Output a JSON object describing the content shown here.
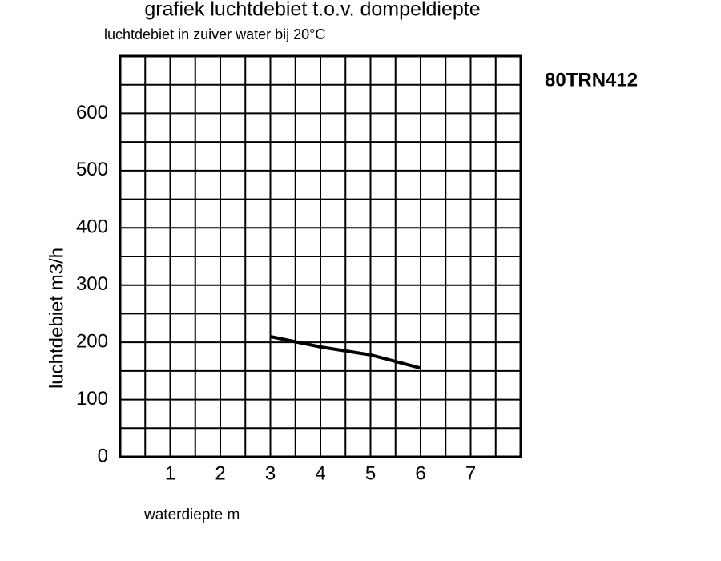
{
  "chart_data": {
    "type": "line",
    "title": "grafiek luchtdebiet t.o.v. dompeldiepte",
    "subtitle": "luchtdebiet in zuiver water bij 20°C",
    "annotation": "80TRN412",
    "x_label": "waterdiepte m",
    "y_label": "luchtdebiet m3/h",
    "x": [
      3,
      4,
      5,
      6
    ],
    "series": [
      {
        "color": "#000000",
        "values": [
          210,
          192,
          178,
          155
        ]
      }
    ],
    "xlim": [
      0,
      8
    ],
    "ylim": [
      0,
      700
    ],
    "xticks": [
      1,
      2,
      3,
      4,
      5,
      6,
      7
    ],
    "yticks": [
      0,
      100,
      200,
      300,
      400,
      500,
      600
    ],
    "x_gridlines": [
      0.5,
      1,
      1.5,
      2,
      2.5,
      3,
      3.5,
      4,
      4.5,
      5,
      5.5,
      6,
      6.5,
      7,
      7.5
    ],
    "y_gridlines": [
      50,
      100,
      150,
      200,
      250,
      300,
      350,
      400,
      450,
      500,
      550,
      600,
      650
    ],
    "grid": true
  }
}
